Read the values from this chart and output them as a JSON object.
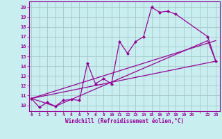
{
  "xlabel": "Windchill (Refroidissement éolien,°C)",
  "bg_color": "#c8eef0",
  "line_color": "#990099",
  "grid_color": "#9fbfbf",
  "xtick_labels": [
    "0",
    "1",
    "2",
    "3",
    "4",
    "5",
    "6",
    "7",
    "8",
    "9",
    "10",
    "11",
    "12",
    "13",
    "14",
    "15",
    "16",
    "17",
    "18",
    "19",
    "20",
    "",
    "22",
    "23"
  ],
  "xtick_positions": [
    0,
    1,
    2,
    3,
    4,
    5,
    6,
    7,
    8,
    9,
    10,
    11,
    12,
    13,
    14,
    15,
    16,
    17,
    18,
    19,
    20,
    21,
    22,
    23
  ],
  "ytick_labels": [
    "10",
    "11",
    "12",
    "13",
    "14",
    "15",
    "16",
    "17",
    "18",
    "19",
    "20"
  ],
  "ytick_positions": [
    10,
    11,
    12,
    13,
    14,
    15,
    16,
    17,
    18,
    19,
    20
  ],
  "xlim": [
    -0.3,
    23.5
  ],
  "ylim": [
    9.4,
    20.6
  ],
  "series_main": {
    "x": [
      0,
      1,
      2,
      3,
      4,
      5,
      6,
      7,
      8,
      9,
      10,
      11,
      12,
      13,
      14,
      15,
      16,
      17,
      18,
      22,
      23
    ],
    "y": [
      10.7,
      9.8,
      10.3,
      9.9,
      10.5,
      10.6,
      10.5,
      14.3,
      12.2,
      12.7,
      12.2,
      16.5,
      15.3,
      16.5,
      17.0,
      20.0,
      19.5,
      19.6,
      19.3,
      17.0,
      14.5
    ]
  },
  "series_envelope1": {
    "x": [
      0,
      3,
      22,
      23
    ],
    "y": [
      10.7,
      9.9,
      16.6,
      14.5
    ]
  },
  "series_line_low": {
    "x": [
      0,
      23
    ],
    "y": [
      10.7,
      14.5
    ]
  },
  "series_line_high": {
    "x": [
      0,
      23
    ],
    "y": [
      10.7,
      16.6
    ]
  }
}
